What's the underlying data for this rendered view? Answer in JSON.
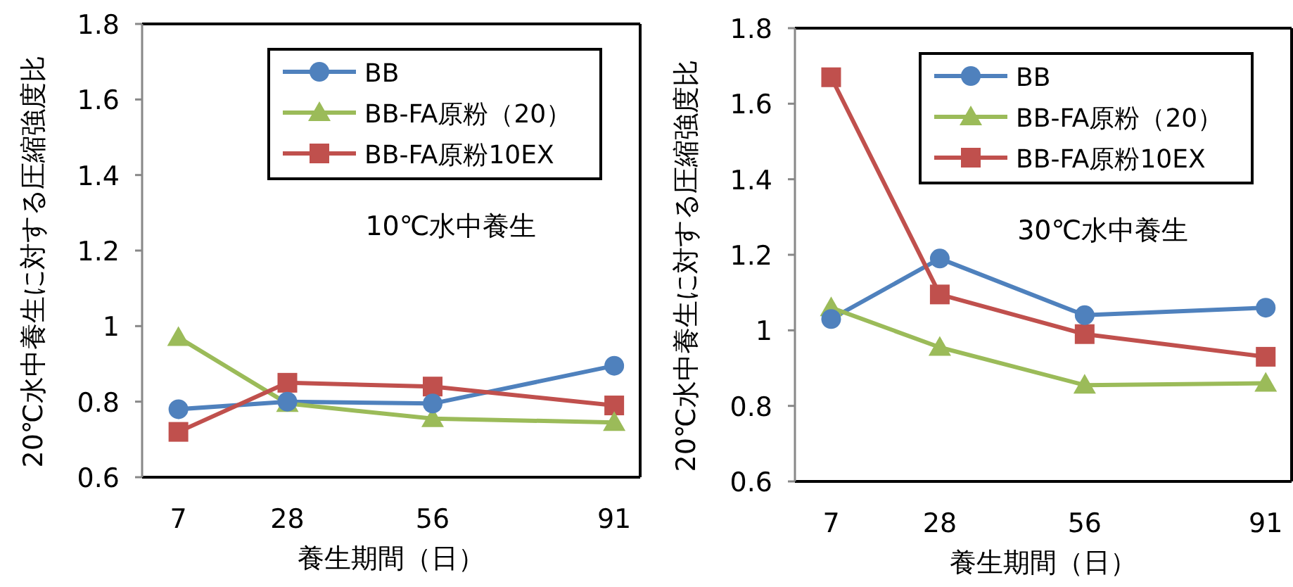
{
  "chart_data": [
    {
      "type": "line",
      "x": [
        7,
        28,
        56,
        91
      ],
      "xlim": [
        0,
        96
      ],
      "xticks": [
        7,
        28,
        56,
        91
      ],
      "ylim": [
        0.6,
        1.8
      ],
      "yticks": [
        0.6,
        0.8,
        1,
        1.2,
        1.4,
        1.6,
        1.8
      ],
      "ylabel": "20℃水中養生に対する圧縮強度比",
      "xlabel": "養生期間（日）",
      "annotations": [
        "10℃水中養生"
      ],
      "legend": "top right",
      "grid": false,
      "series": [
        {
          "name": "BB",
          "color": "#4f81bd",
          "marker": "circle",
          "values": [
            0.78,
            0.8,
            0.795,
            0.895
          ]
        },
        {
          "name": "BB-FA原粉（20）",
          "color": "#9bbb59",
          "marker": "triangle",
          "values": [
            0.97,
            0.795,
            0.755,
            0.745
          ]
        },
        {
          "name": "BB-FA原粉10EX",
          "color": "#c0504d",
          "marker": "square",
          "values": [
            0.72,
            0.85,
            0.84,
            0.79
          ]
        }
      ]
    },
    {
      "type": "line",
      "x": [
        7,
        28,
        56,
        91
      ],
      "xlim": [
        0,
        96
      ],
      "xticks": [
        7,
        28,
        56,
        91
      ],
      "ylim": [
        0.6,
        1.8
      ],
      "yticks": [
        0.6,
        0.8,
        1,
        1.2,
        1.4,
        1.6,
        1.8
      ],
      "ylabel": "20℃水中養生に対する圧縮強度比",
      "xlabel": "養生期間（日）",
      "annotations": [
        "30℃水中養生"
      ],
      "legend": "top right",
      "grid": false,
      "series": [
        {
          "name": "BB",
          "color": "#4f81bd",
          "marker": "circle",
          "values": [
            1.03,
            1.19,
            1.04,
            1.06
          ]
        },
        {
          "name": "BB-FA原粉（20）",
          "color": "#9bbb59",
          "marker": "triangle",
          "values": [
            1.06,
            0.955,
            0.855,
            0.86
          ]
        },
        {
          "name": "BB-FA原粉10EX",
          "color": "#c0504d",
          "marker": "square",
          "values": [
            1.67,
            1.095,
            0.99,
            0.93
          ]
        }
      ]
    }
  ]
}
